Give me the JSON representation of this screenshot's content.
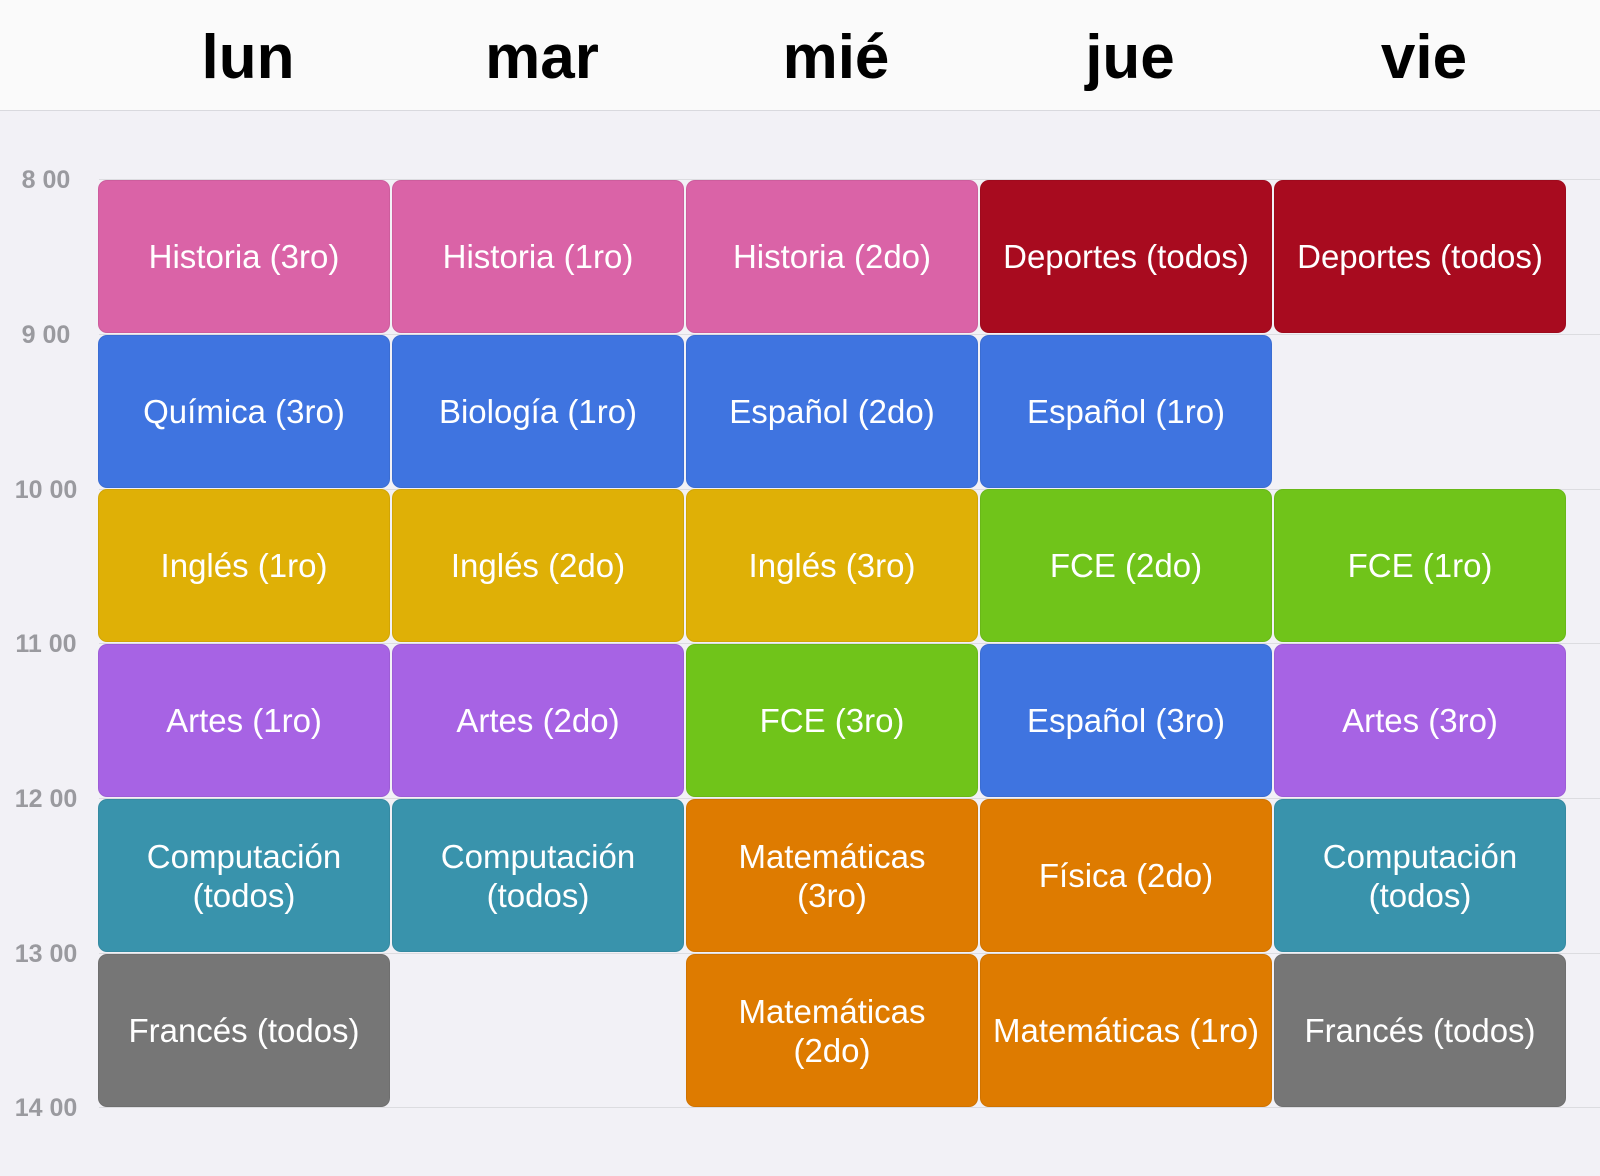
{
  "days": [
    "lun",
    "mar",
    "mié",
    "jue",
    "vie"
  ],
  "hours": [
    "8 00",
    "9 00",
    "10 00",
    "11 00",
    "12 00",
    "13 00",
    "14 00"
  ],
  "colors": {
    "historia": "#da63a7",
    "deportes": "#a80b1f",
    "blue": "#3f74e0",
    "ingles": "#dfb006",
    "fce": "#70c41a",
    "artes": "#a763e4",
    "computacion": "#3993ac",
    "matematicas": "#de7b00",
    "frances": "#767676"
  },
  "lessons": [
    {
      "day": 0,
      "start": 0,
      "label": "Historia (3ro)",
      "color": "#da63a7"
    },
    {
      "day": 1,
      "start": 0,
      "label": "Historia (1ro)",
      "color": "#da63a7"
    },
    {
      "day": 2,
      "start": 0,
      "label": "Historia (2do)",
      "color": "#da63a7"
    },
    {
      "day": 3,
      "start": 0,
      "label": "Deportes (todos)",
      "color": "#a80b1f"
    },
    {
      "day": 4,
      "start": 0,
      "label": "Deportes (todos)",
      "color": "#a80b1f"
    },
    {
      "day": 0,
      "start": 1,
      "label": "Química (3ro)",
      "color": "#3f74e0"
    },
    {
      "day": 1,
      "start": 1,
      "label": "Biología (1ro)",
      "color": "#3f74e0"
    },
    {
      "day": 2,
      "start": 1,
      "label": "Español (2do)",
      "color": "#3f74e0"
    },
    {
      "day": 3,
      "start": 1,
      "label": "Español (1ro)",
      "color": "#3f74e0"
    },
    {
      "day": 0,
      "start": 2,
      "label": "Inglés (1ro)",
      "color": "#dfb006"
    },
    {
      "day": 1,
      "start": 2,
      "label": "Inglés (2do)",
      "color": "#dfb006"
    },
    {
      "day": 2,
      "start": 2,
      "label": "Inglés (3ro)",
      "color": "#dfb006"
    },
    {
      "day": 3,
      "start": 2,
      "label": "FCE (2do)",
      "color": "#70c41a"
    },
    {
      "day": 4,
      "start": 2,
      "label": "FCE (1ro)",
      "color": "#70c41a"
    },
    {
      "day": 0,
      "start": 3,
      "label": "Artes (1ro)",
      "color": "#a763e4"
    },
    {
      "day": 1,
      "start": 3,
      "label": "Artes (2do)",
      "color": "#a763e4"
    },
    {
      "day": 2,
      "start": 3,
      "label": "FCE (3ro)",
      "color": "#70c41a"
    },
    {
      "day": 3,
      "start": 3,
      "label": "Español (3ro)",
      "color": "#3f74e0"
    },
    {
      "day": 4,
      "start": 3,
      "label": "Artes (3ro)",
      "color": "#a763e4"
    },
    {
      "day": 0,
      "start": 4,
      "label": "Computación\n(todos)",
      "color": "#3993ac"
    },
    {
      "day": 1,
      "start": 4,
      "label": "Computación\n(todos)",
      "color": "#3993ac"
    },
    {
      "day": 2,
      "start": 4,
      "label": "Matemáticas\n(3ro)",
      "color": "#de7b00"
    },
    {
      "day": 3,
      "start": 4,
      "label": "Física (2do)",
      "color": "#de7b00"
    },
    {
      "day": 4,
      "start": 4,
      "label": "Computación\n(todos)",
      "color": "#3993ac"
    },
    {
      "day": 0,
      "start": 5,
      "label": "Francés (todos)",
      "color": "#767676"
    },
    {
      "day": 2,
      "start": 5,
      "label": "Matemáticas\n(2do)",
      "color": "#de7b00"
    },
    {
      "day": 3,
      "start": 5,
      "label": "Matemáticas (1ro)",
      "color": "#de7b00"
    },
    {
      "day": 4,
      "start": 5,
      "label": "Francés (todos)",
      "color": "#767676"
    }
  ]
}
